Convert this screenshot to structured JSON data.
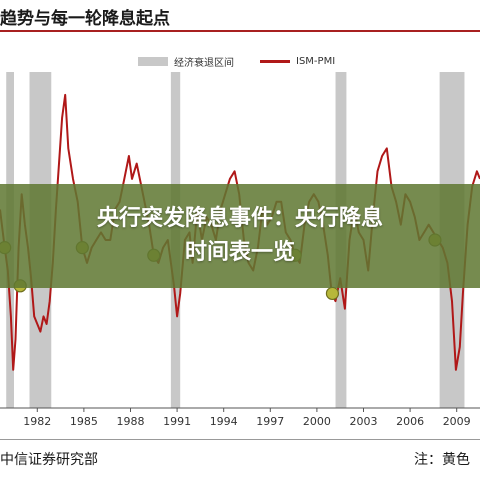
{
  "header": {
    "title": "趋势与每一轮降息起点"
  },
  "chart_data": {
    "type": "line",
    "title": "趋势与每一轮降息起点",
    "xlabel": "",
    "ylabel": "",
    "x_ticks": [
      "1982",
      "1985",
      "1988",
      "1991",
      "1994",
      "1997",
      "2000",
      "2003",
      "2006",
      "2009"
    ],
    "xlim": [
      1979.6,
      2010.5
    ],
    "ylim": [
      28,
      72
    ],
    "grid": false,
    "legend_placement": "top",
    "legend": [
      "经济衰退区间",
      "ISM-PMI"
    ],
    "recessions": [
      {
        "start": 1980.0,
        "end": 1980.5
      },
      {
        "start": 1981.5,
        "end": 1982.9
      },
      {
        "start": 1990.6,
        "end": 1991.2
      },
      {
        "start": 2001.2,
        "end": 2001.9
      },
      {
        "start": 2007.9,
        "end": 2009.5
      }
    ],
    "series": [
      {
        "name": "ISM-PMI",
        "color": "#b01818",
        "points": [
          [
            1979.6,
            54
          ],
          [
            1979.9,
            49
          ],
          [
            1980.1,
            46
          ],
          [
            1980.3,
            40
          ],
          [
            1980.45,
            33
          ],
          [
            1980.6,
            37
          ],
          [
            1980.8,
            49
          ],
          [
            1981.0,
            56
          ],
          [
            1981.2,
            52
          ],
          [
            1981.4,
            49
          ],
          [
            1981.6,
            45
          ],
          [
            1981.8,
            40
          ],
          [
            1982.0,
            39
          ],
          [
            1982.2,
            38
          ],
          [
            1982.4,
            40
          ],
          [
            1982.6,
            39
          ],
          [
            1982.8,
            42
          ],
          [
            1983.0,
            47
          ],
          [
            1983.2,
            54
          ],
          [
            1983.4,
            60
          ],
          [
            1983.6,
            66
          ],
          [
            1983.8,
            69
          ],
          [
            1984.0,
            62
          ],
          [
            1984.3,
            58
          ],
          [
            1984.6,
            55
          ],
          [
            1984.9,
            49
          ],
          [
            1985.2,
            47
          ],
          [
            1985.5,
            49
          ],
          [
            1985.8,
            50
          ],
          [
            1986.1,
            51
          ],
          [
            1986.4,
            50
          ],
          [
            1986.7,
            50
          ],
          [
            1987.0,
            54
          ],
          [
            1987.3,
            55
          ],
          [
            1987.6,
            58
          ],
          [
            1987.9,
            61
          ],
          [
            1988.1,
            58
          ],
          [
            1988.4,
            60
          ],
          [
            1988.7,
            57
          ],
          [
            1988.9,
            55
          ],
          [
            1989.2,
            52
          ],
          [
            1989.5,
            48
          ],
          [
            1989.8,
            47
          ],
          [
            1990.1,
            49
          ],
          [
            1990.4,
            50
          ],
          [
            1990.6,
            47
          ],
          [
            1990.8,
            44
          ],
          [
            1991.0,
            40
          ],
          [
            1991.2,
            43
          ],
          [
            1991.5,
            50
          ],
          [
            1991.8,
            51
          ],
          [
            1992.0,
            47
          ],
          [
            1992.3,
            54
          ],
          [
            1992.6,
            50
          ],
          [
            1992.9,
            53
          ],
          [
            1993.2,
            52
          ],
          [
            1993.5,
            50
          ],
          [
            1993.8,
            54
          ],
          [
            1994.1,
            56
          ],
          [
            1994.4,
            58
          ],
          [
            1994.7,
            59
          ],
          [
            1995.0,
            56
          ],
          [
            1995.3,
            50
          ],
          [
            1995.6,
            47
          ],
          [
            1995.9,
            46
          ],
          [
            1996.2,
            49
          ],
          [
            1996.5,
            54
          ],
          [
            1996.8,
            52
          ],
          [
            1997.1,
            53
          ],
          [
            1997.4,
            55
          ],
          [
            1997.7,
            55
          ],
          [
            1998.0,
            51
          ],
          [
            1998.3,
            50
          ],
          [
            1998.6,
            48
          ],
          [
            1998.9,
            47
          ],
          [
            1999.2,
            52
          ],
          [
            1999.5,
            55
          ],
          [
            1999.8,
            56
          ],
          [
            2000.1,
            55
          ],
          [
            2000.4,
            52
          ],
          [
            2000.7,
            48
          ],
          [
            2000.95,
            43
          ],
          [
            2001.2,
            42
          ],
          [
            2001.5,
            45
          ],
          [
            2001.8,
            41
          ],
          [
            2002.1,
            50
          ],
          [
            2002.4,
            54
          ],
          [
            2002.7,
            51
          ],
          [
            2003.0,
            50
          ],
          [
            2003.3,
            46
          ],
          [
            2003.6,
            53
          ],
          [
            2003.9,
            59
          ],
          [
            2004.2,
            61
          ],
          [
            2004.5,
            62
          ],
          [
            2004.8,
            57
          ],
          [
            2005.1,
            55
          ],
          [
            2005.4,
            52
          ],
          [
            2005.7,
            56
          ],
          [
            2006.0,
            55
          ],
          [
            2006.3,
            53
          ],
          [
            2006.6,
            50
          ],
          [
            2006.9,
            51
          ],
          [
            2007.2,
            52
          ],
          [
            2007.5,
            51
          ],
          [
            2007.8,
            50
          ],
          [
            2008.1,
            49
          ],
          [
            2008.4,
            47
          ],
          [
            2008.7,
            42
          ],
          [
            2008.95,
            33
          ],
          [
            2009.2,
            36
          ],
          [
            2009.4,
            43
          ],
          [
            2009.7,
            52
          ],
          [
            2010.0,
            57
          ],
          [
            2010.3,
            59
          ],
          [
            2010.5,
            58
          ]
        ]
      }
    ],
    "cut_start_markers": [
      {
        "x": 1979.9,
        "y": 49
      },
      {
        "x": 1980.9,
        "y": 44
      },
      {
        "x": 1984.9,
        "y": 49
      },
      {
        "x": 1989.5,
        "y": 48
      },
      {
        "x": 1998.6,
        "y": 48
      },
      {
        "x": 2001.0,
        "y": 43
      },
      {
        "x": 2007.6,
        "y": 50
      }
    ]
  },
  "overlay": {
    "line1": "央行突发降息事件：央行降息",
    "line2": "时间表一览"
  },
  "footer": {
    "source": "中信证券研究部",
    "note": "注：黄色"
  },
  "colors": {
    "recession": "#c8c8c8",
    "marker_fill": "#b7b73a",
    "marker_stroke": "#6e6e1e",
    "banner": "#5f7832"
  }
}
